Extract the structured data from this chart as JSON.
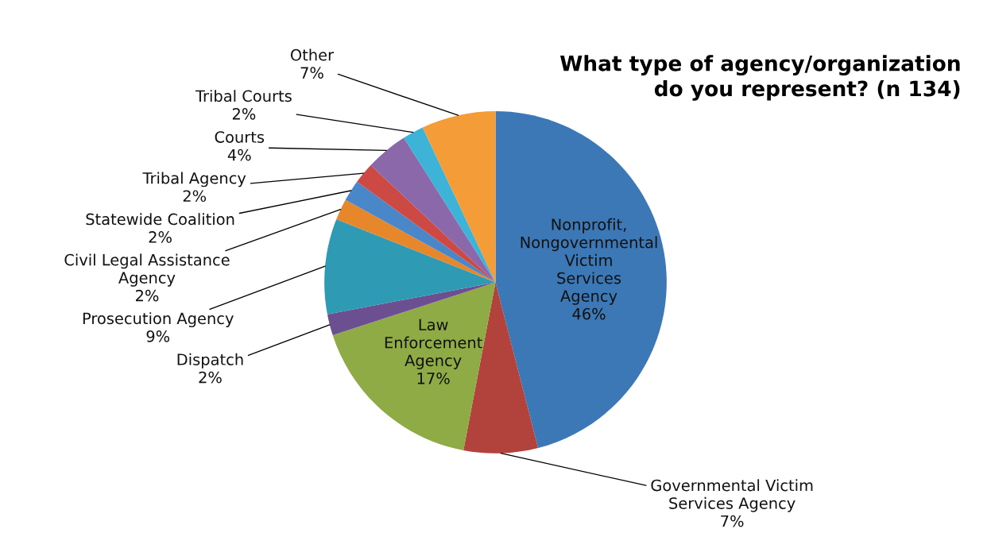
{
  "chart_data": {
    "type": "pie",
    "title": "What type of agency/organization do you represent? (n 134)",
    "categories": [
      "Nonprofit, Nongovernmental Victim Services Agency",
      "Governmental Victim Services Agency",
      "Law Enforcement Agency",
      "Dispatch",
      "Prosecution Agency",
      "Civil Legal Assistance Agency",
      "Statewide Coalition",
      "Tribal Agency",
      "Courts",
      "Tribal Courts",
      "Other"
    ],
    "values": [
      46,
      7,
      17,
      2,
      9,
      2,
      2,
      2,
      4,
      2,
      7
    ],
    "value_labels": [
      "46%",
      "7%",
      "17%",
      "2%",
      "9%",
      "2%",
      "2%",
      "2%",
      "4%",
      "2%",
      "7%"
    ],
    "colors": [
      "#3d78b6",
      "#b2423c",
      "#8fab45",
      "#6c4f90",
      "#2f9ab4",
      "#e6872b",
      "#4a87c9",
      "#cd4943",
      "#8a68a9",
      "#3cb3d7",
      "#f49c37"
    ],
    "legend": false
  }
}
